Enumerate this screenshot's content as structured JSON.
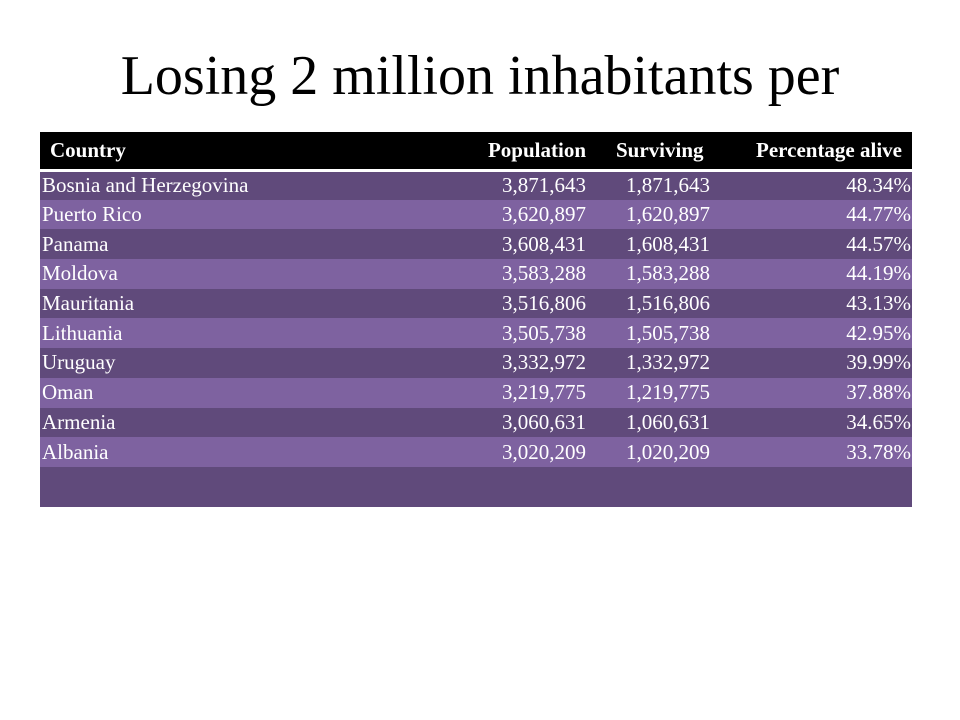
{
  "title": "Losing 2 million inhabitants per",
  "table": {
    "headers": {
      "country": "Country",
      "population": "Population",
      "surviving": "Surviving",
      "percentage": "Percentage alive"
    },
    "rows": [
      {
        "country": "Bosnia and Herzegovina",
        "population": "3,871,643",
        "surviving": "1,871,643",
        "percentage": "48.34%"
      },
      {
        "country": "Puerto Rico",
        "population": "3,620,897",
        "surviving": "1,620,897",
        "percentage": "44.77%"
      },
      {
        "country": "Panama",
        "population": "3,608,431",
        "surviving": "1,608,431",
        "percentage": "44.57%"
      },
      {
        "country": "Moldova",
        "population": "3,583,288",
        "surviving": "1,583,288",
        "percentage": "44.19%"
      },
      {
        "country": "Mauritania",
        "population": "3,516,806",
        "surviving": "1,516,806",
        "percentage": "43.13%"
      },
      {
        "country": "Lithuania",
        "population": "3,505,738",
        "surviving": "1,505,738",
        "percentage": "42.95%"
      },
      {
        "country": "Uruguay",
        "population": "3,332,972",
        "surviving": "1,332,972",
        "percentage": "39.99%"
      },
      {
        "country": "Oman",
        "population": "3,219,775",
        "surviving": "1,219,775",
        "percentage": "37.88%"
      },
      {
        "country": "Armenia",
        "population": "3,060,631",
        "surviving": "1,060,631",
        "percentage": "34.65%"
      },
      {
        "country": "Albania",
        "population": "3,020,209",
        "surviving": "1,020,209",
        "percentage": "33.78%"
      }
    ]
  },
  "colors": {
    "header_bg": "#000000",
    "row_dark": "#604a7b",
    "row_light": "#7e62a0",
    "text": "#ffffff"
  }
}
